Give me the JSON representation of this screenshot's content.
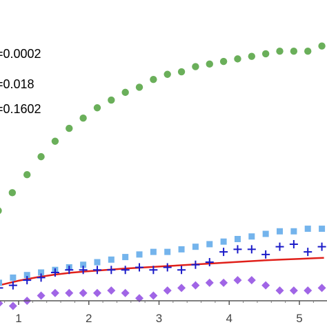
{
  "chart_data": {
    "type": "scatter",
    "title": "",
    "xlabel": "",
    "ylabel": "",
    "xlim": [
      0.72,
      5.35
    ],
    "ylim": [
      0.0,
      1.0
    ],
    "x_ticks": [
      1,
      2,
      3,
      4,
      5
    ],
    "x_tick_labels": [
      "1",
      "2",
      "3",
      "4",
      "5"
    ],
    "legend": {
      "placement": "top-left",
      "entries": [
        "=0.0002",
        "=0.018",
        "=0.1602"
      ]
    },
    "series": [
      {
        "marker": "circle",
        "color": "#6aaf5a",
        "x": [
          0.71,
          0.91,
          1.12,
          1.32,
          1.52,
          1.72,
          1.92,
          2.12,
          2.32,
          2.52,
          2.72,
          2.92,
          3.12,
          3.32,
          3.52,
          3.72,
          3.92,
          4.12,
          4.32,
          4.52,
          4.72,
          4.92,
          5.12,
          5.32
        ],
        "y": [
          0.35,
          0.42,
          0.49,
          0.56,
          0.62,
          0.67,
          0.71,
          0.75,
          0.78,
          0.81,
          0.83,
          0.86,
          0.88,
          0.89,
          0.91,
          0.92,
          0.93,
          0.94,
          0.95,
          0.96,
          0.97,
          0.97,
          0.97,
          0.99
        ]
      },
      {
        "marker": "square",
        "color": "#74b4ec",
        "x": [
          0.72,
          0.92,
          1.12,
          1.32,
          1.52,
          1.72,
          1.92,
          2.12,
          2.32,
          2.52,
          2.72,
          2.92,
          3.12,
          3.32,
          3.52,
          3.72,
          3.92,
          4.12,
          4.32,
          4.52,
          4.72,
          4.92,
          5.12,
          5.32
        ],
        "y": [
          0.07,
          0.09,
          0.1,
          0.11,
          0.12,
          0.13,
          0.14,
          0.15,
          0.16,
          0.17,
          0.18,
          0.19,
          0.19,
          0.2,
          0.21,
          0.22,
          0.23,
          0.24,
          0.25,
          0.26,
          0.27,
          0.27,
          0.28,
          0.28
        ]
      },
      {
        "marker": "plus",
        "color": "#1a1ac8",
        "x": [
          0.72,
          0.92,
          1.12,
          1.32,
          1.52,
          1.72,
          1.92,
          2.12,
          2.32,
          2.52,
          2.72,
          2.92,
          3.12,
          3.32,
          3.52,
          3.72,
          3.92,
          4.12,
          4.32,
          4.52,
          4.72,
          4.92,
          5.12,
          5.32
        ],
        "y": [
          0.05,
          0.06,
          0.08,
          0.09,
          0.11,
          0.12,
          0.12,
          0.12,
          0.12,
          0.12,
          0.13,
          0.12,
          0.13,
          0.12,
          0.14,
          0.15,
          0.19,
          0.2,
          0.2,
          0.18,
          0.21,
          0.22,
          0.19,
          0.21
        ]
      },
      {
        "marker": "diamond",
        "color": "#a065e6",
        "x": [
          0.72,
          0.92,
          1.12,
          1.32,
          1.52,
          1.72,
          1.92,
          2.12,
          2.32,
          2.52,
          2.72,
          2.92,
          3.12,
          3.32,
          3.52,
          3.72,
          3.92,
          4.12,
          4.32,
          4.52,
          4.72,
          4.92,
          5.12,
          5.32
        ],
        "y": [
          -0.01,
          -0.02,
          0.0,
          0.02,
          0.03,
          0.03,
          0.03,
          0.03,
          0.04,
          0.03,
          0.01,
          0.02,
          0.04,
          0.05,
          0.06,
          0.07,
          0.07,
          0.08,
          0.08,
          0.06,
          0.04,
          0.04,
          0.04,
          0.05
        ]
      }
    ],
    "curve": {
      "color": "#e0201a",
      "x": [
        0.72,
        1.0,
        1.25,
        1.5,
        1.75,
        2.0,
        2.25,
        2.5,
        2.75,
        3.0,
        3.25,
        3.5,
        3.75,
        4.0,
        4.25,
        4.5,
        4.75,
        5.0,
        5.25,
        5.35
      ],
      "y": [
        0.06,
        0.078,
        0.091,
        0.101,
        0.109,
        0.115,
        0.12,
        0.125,
        0.129,
        0.133,
        0.137,
        0.141,
        0.145,
        0.149,
        0.153,
        0.157,
        0.16,
        0.163,
        0.166,
        0.167
      ]
    }
  }
}
